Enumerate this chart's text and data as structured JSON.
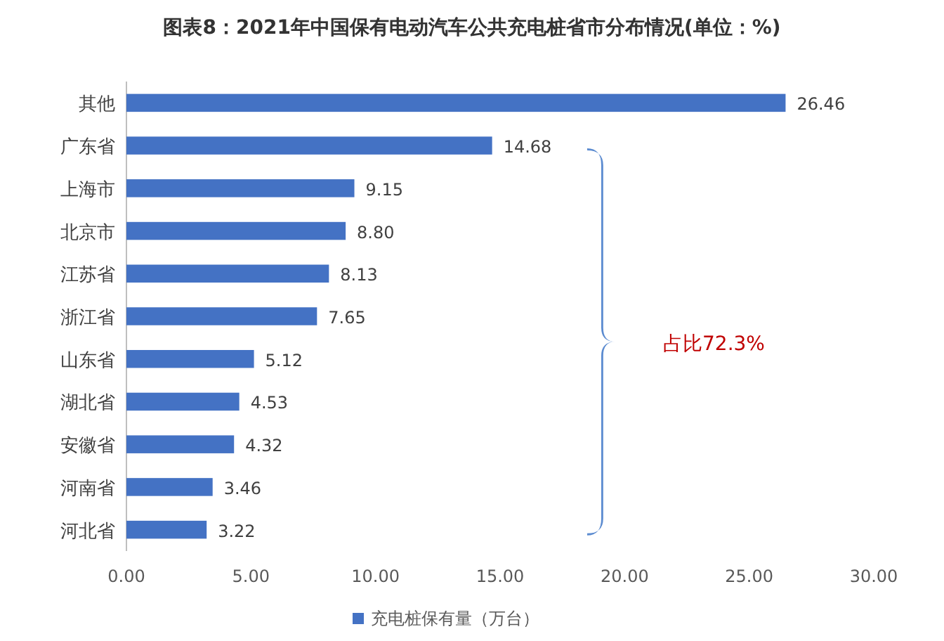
{
  "chart_data": {
    "type": "bar",
    "orientation": "horizontal",
    "title": "图表8：2021年中国保有电动汽车公共充电桩省市分布情况(单位：%)",
    "categories": [
      "其他",
      "广东省",
      "上海市",
      "北京市",
      "江苏省",
      "浙江省",
      "山东省",
      "湖北省",
      "安徽省",
      "河南省",
      "河北省"
    ],
    "series": [
      {
        "name": "充电桩保有量（万台）",
        "color": "#4472c4",
        "values": [
          26.46,
          14.68,
          9.15,
          8.8,
          8.13,
          7.65,
          5.12,
          4.53,
          4.32,
          3.46,
          3.22
        ],
        "value_labels": [
          "26.46",
          "14.68",
          "9.15",
          "8.80",
          "8.13",
          "7.65",
          "5.12",
          "4.53",
          "4.32",
          "3.46",
          "3.22"
        ]
      }
    ],
    "xlim": [
      0,
      30
    ],
    "xticks": [
      {
        "value": 0,
        "label": "0.00"
      },
      {
        "value": 5,
        "label": "5.00"
      },
      {
        "value": 10,
        "label": "10.00"
      },
      {
        "value": 15,
        "label": "15.00"
      },
      {
        "value": 20,
        "label": "20.00"
      },
      {
        "value": 25,
        "label": "25.00"
      },
      {
        "value": 30,
        "label": "30.00"
      }
    ],
    "grid": false,
    "legend": "bottom",
    "annotations": [
      "占比72.3%"
    ]
  }
}
